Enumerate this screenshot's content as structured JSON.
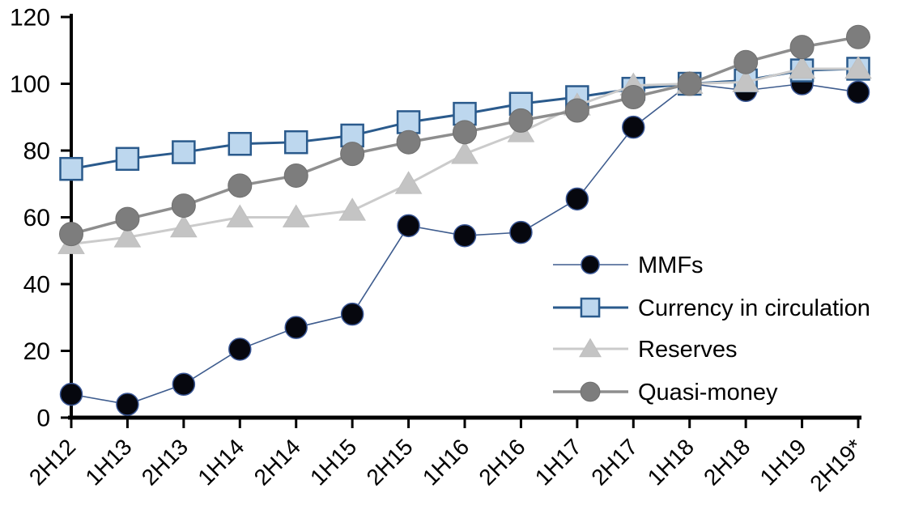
{
  "chart_data": {
    "type": "line",
    "title": "",
    "xlabel": "",
    "ylabel": "",
    "grid": false,
    "background": "#ffffff",
    "axis_color": "#000000",
    "legend_position": "inside-right",
    "ylim": [
      0,
      120
    ],
    "ytick_step": 20,
    "ytick_labels": [
      "0",
      "20",
      "40",
      "60",
      "80",
      "100",
      "120"
    ],
    "categories": [
      "2H12",
      "1H13",
      "2H13",
      "1H14",
      "2H14",
      "1H15",
      "2H15",
      "1H16",
      "2H16",
      "1H17",
      "2H17",
      "1H18",
      "2H18",
      "1H19",
      "2H19*"
    ],
    "series": [
      {
        "name": "MMFs",
        "marker": "circle",
        "marker_size": 27,
        "marker_fill": "#06070e",
        "marker_stroke": "#3a5796",
        "marker_stroke_width": 1.5,
        "line_color": "#3e5c8e",
        "line_width": 1.6,
        "values": [
          7,
          4,
          10,
          20.5,
          27,
          31,
          57.5,
          54.5,
          55.5,
          65.5,
          87,
          100,
          98,
          100,
          97.5
        ]
      },
      {
        "name": "Currency in circulation",
        "marker": "square",
        "marker_size": 27,
        "marker_fill": "#bdd7ee",
        "marker_stroke": "#2a5a8c",
        "marker_stroke_width": 2.5,
        "line_color": "#2a5a8c",
        "line_width": 3,
        "values": [
          74.5,
          77.5,
          79.5,
          82,
          82.5,
          84.5,
          88.5,
          91,
          94,
          96,
          98.5,
          100,
          101,
          104,
          104.5
        ]
      },
      {
        "name": "Reserves",
        "marker": "triangle",
        "marker_size": 28,
        "marker_fill": "#c4c4c4",
        "marker_stroke": "#bfbfbf",
        "marker_stroke_width": 1,
        "line_color": "#cbcbcb",
        "line_width": 3,
        "values": [
          52,
          54,
          57,
          60,
          60,
          62,
          70,
          79,
          85.5,
          93.5,
          99.5,
          100,
          100.5,
          104.5,
          104.5
        ]
      },
      {
        "name": "Quasi-money",
        "marker": "circle",
        "marker_size": 29,
        "marker_fill": "#7d7d7d",
        "marker_stroke": "#6f6f6f",
        "marker_stroke_width": 1,
        "line_color": "#8e8e8e",
        "line_width": 3.5,
        "values": [
          55,
          59.5,
          63.5,
          69.5,
          72.5,
          79,
          82.5,
          85.5,
          89,
          92,
          96,
          100,
          106.5,
          111,
          114
        ]
      }
    ]
  }
}
